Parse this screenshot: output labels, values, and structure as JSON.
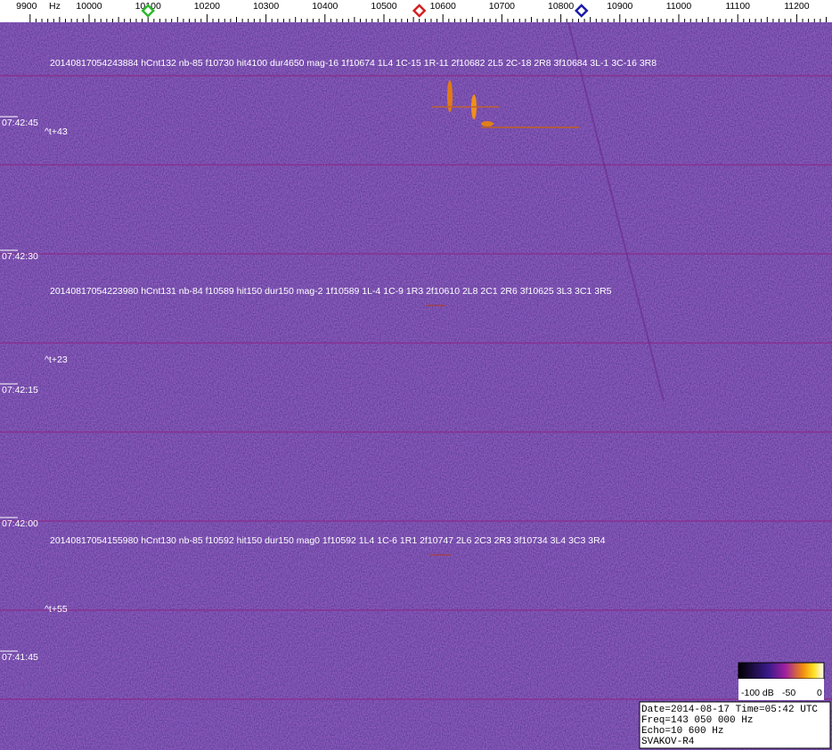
{
  "axis": {
    "unit": "Hz",
    "ticks": [
      9900,
      10000,
      10100,
      10200,
      10300,
      10400,
      10500,
      10600,
      10700,
      10800,
      10900,
      11000,
      11100,
      11200
    ]
  },
  "markers": [
    {
      "frequency": 10100,
      "color": "#2db82d"
    },
    {
      "frequency": 10560,
      "color": "#d42020"
    },
    {
      "frequency": 10835,
      "color": "#1a1aa8"
    }
  ],
  "time_labels": [
    "07:42:45",
    "07:42:30",
    "07:42:15",
    "07:42:00",
    "07:41:45"
  ],
  "events": [
    {
      "text": "20140817054243884 hCnt132 nb-85 f10730 hit4100 dur4650 mag-16 1f10674 1L4 1C-15 1R-11 2f10682 2L5 2C-18 2R8 3f10684 3L-1 3C-16 3R8",
      "offset": "^t+43"
    },
    {
      "text": "20140817054223980 hCnt131 nb-84 f10589 hit150 dur150 mag-2 1f10589 1L-4 1C-9 1R3 2f10610 2L8 2C1 2R6 3f10625 3L3 3C1 3R5",
      "offset": "^t+23"
    },
    {
      "text": "20140817054155980 hCnt130 nb-85 f10592 hit150 dur150 mag0 1f10592 1L4 1C-6 1R1 2f10747 2L6 2C3 2R3 3f10734 3L4 3C3 3R4",
      "offset": "^t+55"
    }
  ],
  "colorbar": {
    "labels": [
      "-100 dB",
      "-50",
      "0"
    ]
  },
  "info": [
    "Date=2014-08-17 Time=05:42 UTC",
    "Freq=143 050 000 Hz",
    "Echo=10 600 Hz",
    "SVAKOV-R4"
  ]
}
